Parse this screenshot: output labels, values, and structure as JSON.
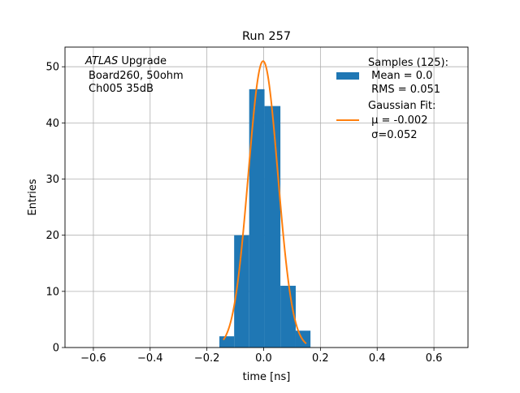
{
  "chart_data": {
    "type": "bar",
    "title": "Run 257",
    "xlabel": "time [ns]",
    "ylabel": "Entries",
    "xlim": [
      -0.7,
      0.72
    ],
    "ylim": [
      0,
      53.5
    ],
    "xticks": [
      -0.6,
      -0.4,
      -0.2,
      0.0,
      0.2,
      0.4,
      0.6
    ],
    "xtick_labels": [
      "−0.6",
      "−0.4",
      "−0.2",
      "0.0",
      "0.2",
      "0.4",
      "0.6"
    ],
    "yticks": [
      0,
      10,
      20,
      30,
      40,
      50
    ],
    "ytick_labels": [
      "0",
      "10",
      "20",
      "30",
      "40",
      "50"
    ],
    "grid": true,
    "histogram": {
      "bin_edges": [
        -0.156,
        -0.104,
        -0.051,
        0.003,
        0.059,
        0.113,
        0.165
      ],
      "counts": [
        2,
        20,
        46,
        43,
        11,
        3
      ],
      "color": "#1f77b4"
    },
    "fit": {
      "type": "gaussian",
      "amplitude": 51,
      "mu": -0.002,
      "sigma": 0.052,
      "x_range": [
        -0.142,
        0.15
      ],
      "color": "#ff7f0e"
    },
    "annotation": {
      "italic": "ATLAS",
      "line1_rest": " Upgrade",
      "line2": "Board260, 50ohm",
      "line3": "Ch005 35dB"
    },
    "legend": {
      "placement": "top-right",
      "samples": [
        "Samples (125):",
        " Mean = 0.0",
        " RMS = 0.051"
      ],
      "fit": [
        "Gaussian Fit:",
        " μ = -0.002",
        " σ=0.052"
      ]
    }
  }
}
